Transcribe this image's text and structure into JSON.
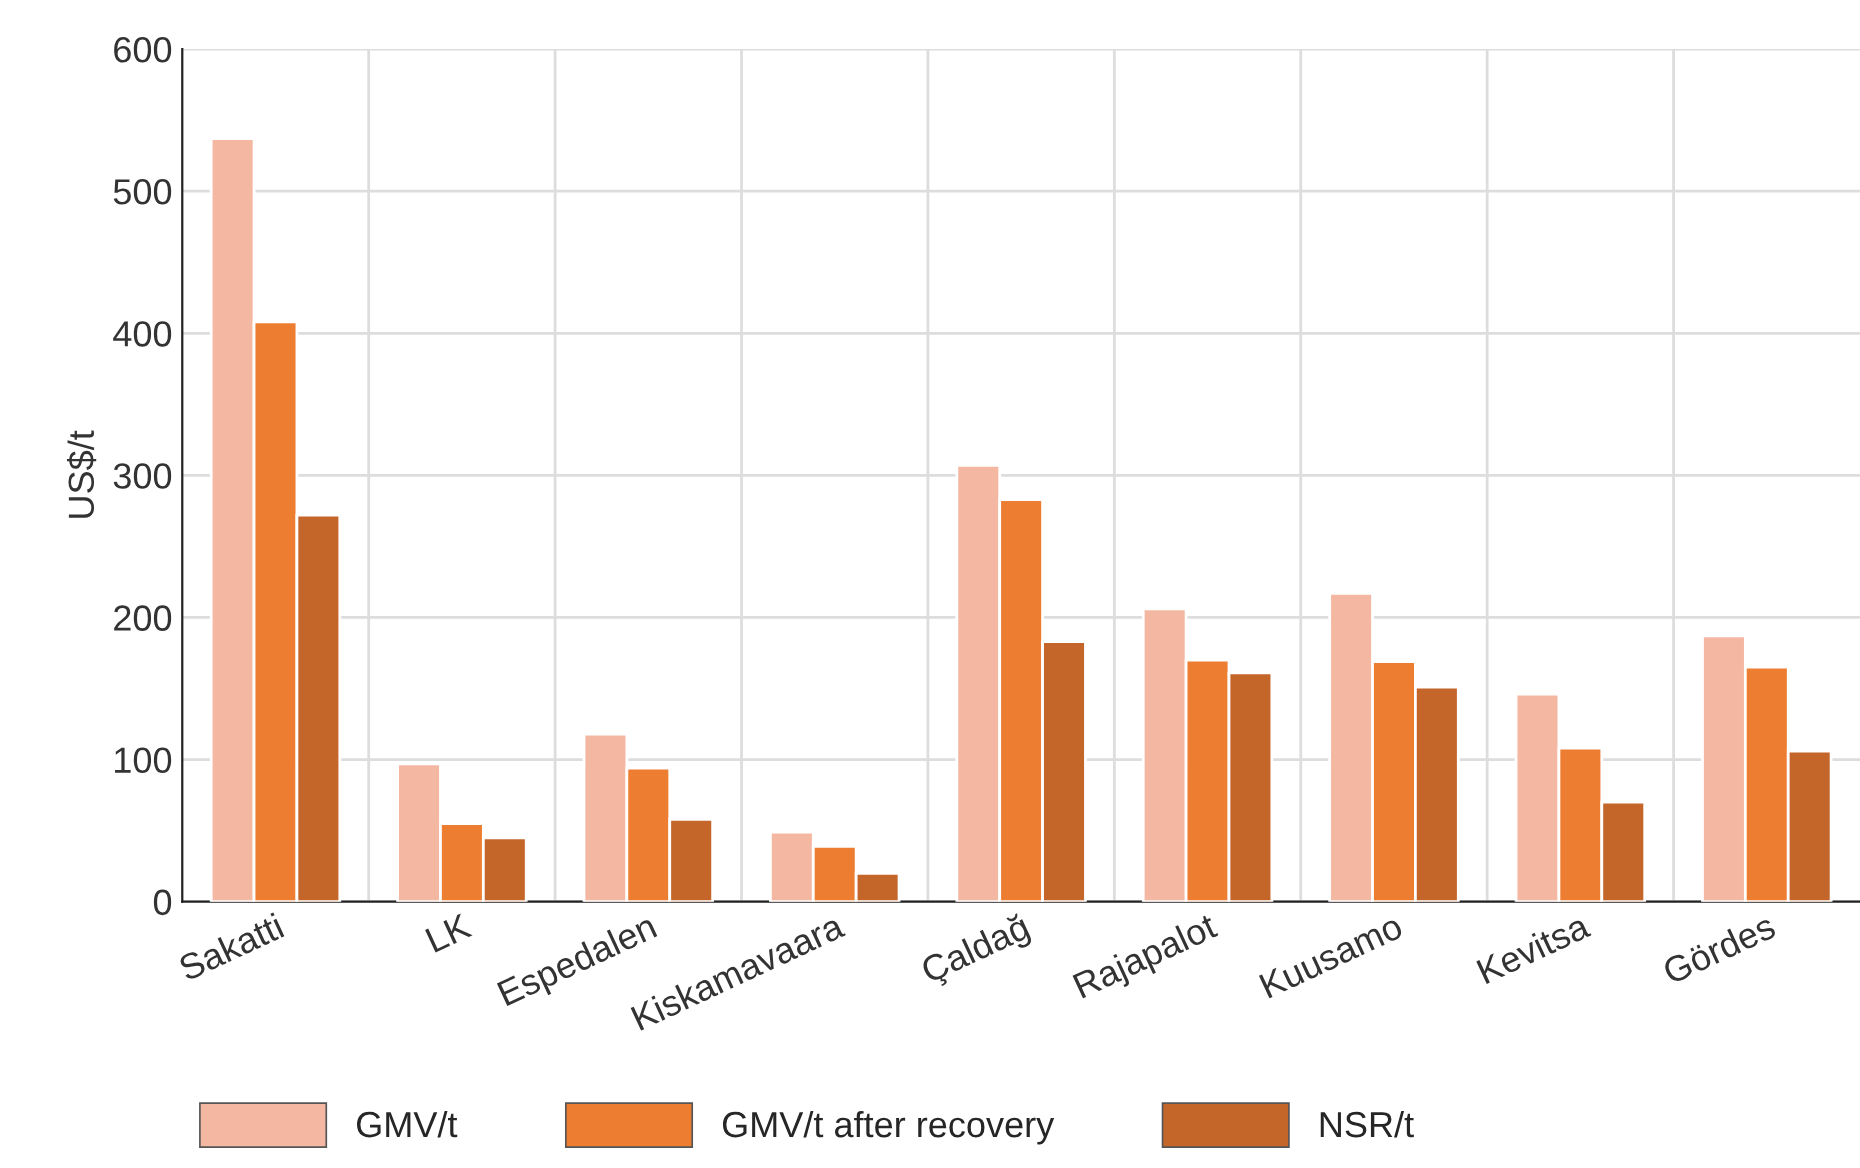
{
  "chart_data": {
    "type": "bar",
    "ylabel": "US$/t",
    "categories": [
      "Sakatti",
      "LK",
      "Espedalen",
      "Kiskamavaara",
      "Çaldağ",
      "Rajapalot",
      "Kuusamo",
      "Kevitsa",
      "Gördes"
    ],
    "series": [
      {
        "name": "GMV/t",
        "color": "#f4b8a2",
        "values": [
          537,
          97,
          118,
          49,
          307,
          206,
          217,
          146,
          187
        ]
      },
      {
        "name": "GMV/t after recovery",
        "color": "#ed7d31",
        "values": [
          408,
          55,
          94,
          39,
          283,
          170,
          169,
          108,
          165
        ]
      },
      {
        "name": "NSR/t",
        "color": "#c4652a",
        "values": [
          272,
          45,
          58,
          20,
          183,
          161,
          151,
          70,
          106
        ]
      }
    ],
    "ylim": [
      0,
      600
    ],
    "yticks": [
      0,
      100,
      200,
      300,
      400,
      500,
      600
    ],
    "grid": true,
    "legend": "bottom left"
  }
}
